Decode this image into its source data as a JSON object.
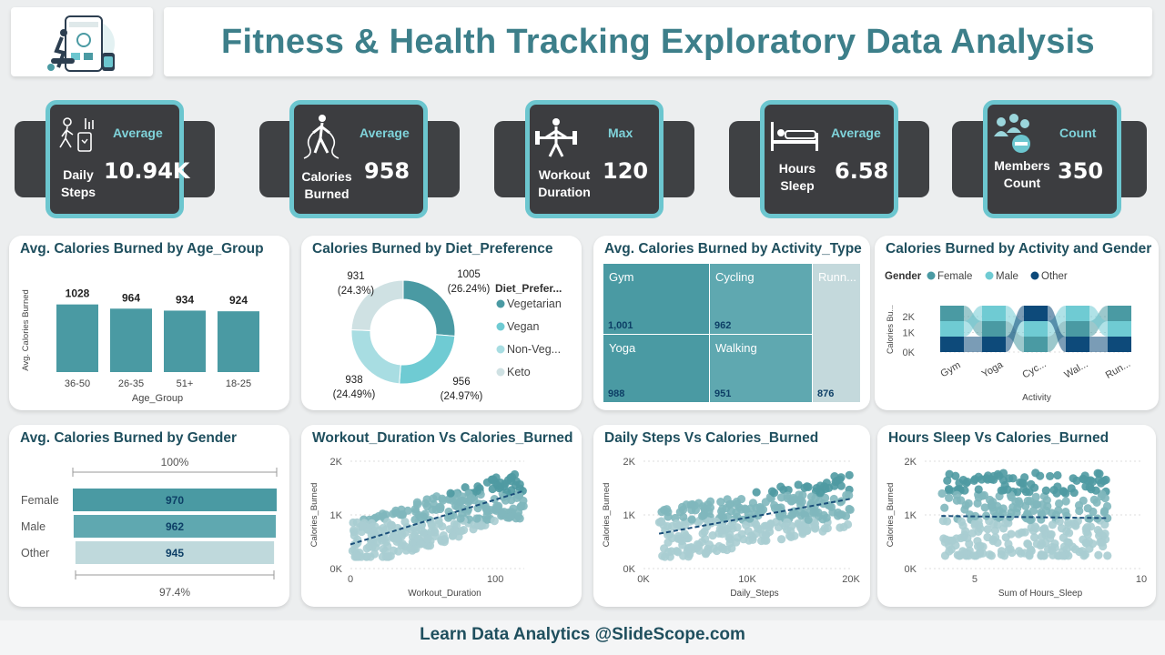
{
  "header": {
    "title": "Fitness & Health Tracking Exploratory Data Analysis",
    "accent": "#3d7f8a"
  },
  "kpis": [
    {
      "stat": "Average",
      "label1": "Daily",
      "label2": "Steps",
      "value": "10.94K",
      "icon": "walking-icon"
    },
    {
      "stat": "Average",
      "label1": "Calories",
      "label2": "Burned",
      "value": "958",
      "icon": "battle-rope-icon"
    },
    {
      "stat": "Max",
      "label1": "Workout",
      "label2": "Duration",
      "value": "120",
      "icon": "weightlifting-icon"
    },
    {
      "stat": "Average",
      "label1": "Hours",
      "label2": "Sleep",
      "value": "6.58",
      "icon": "bed-icon"
    },
    {
      "stat": "Count",
      "label1": "Members",
      "label2": "Count",
      "value": "350",
      "icon": "members-icon"
    }
  ],
  "panels": {
    "age": {
      "title": "Avg. Calories Burned by Age_Group"
    },
    "diet": {
      "title": "Calories Burned by Diet_Preference"
    },
    "activity": {
      "title": "Avg. Calories Burned by Activity_Type"
    },
    "act_gender": {
      "title": "Calories Burned by Activity and Gender"
    },
    "gender": {
      "title": "Avg. Calories Burned by Gender"
    },
    "workout": {
      "title": "Workout_Duration Vs Calories_Burned"
    },
    "steps": {
      "title": "Daily Steps Vs Calories_Burned"
    },
    "sleep": {
      "title": "Hours Sleep Vs Calories_Burned"
    }
  },
  "footer": {
    "text": "Learn Data Analytics @SlideScope.com"
  },
  "colors": {
    "teal_dark": "#4a9aa3",
    "teal_mid": "#6cc6cf",
    "teal_light": "#bfd9dc",
    "navy": "#0d4a7a",
    "dark_teal": "#1f4f5e"
  },
  "chart_data": [
    {
      "id": "age_group",
      "type": "bar",
      "title": "Avg. Calories Burned by Age_Group",
      "xlabel": "Age_Group",
      "ylabel": "Avg. Calories Burned",
      "categories": [
        "36-50",
        "26-35",
        "51+",
        "18-25"
      ],
      "values": [
        1028,
        964,
        934,
        924
      ],
      "labels": [
        "1028",
        "964",
        "934",
        "924"
      ],
      "ylim": [
        0,
        1100
      ]
    },
    {
      "id": "diet",
      "type": "pie",
      "title": "Calories Burned by Diet_Preference",
      "legend_title": "Diet_Prefer...",
      "legend_position": "right",
      "slices": [
        {
          "name": "Vegetarian",
          "value": 1005,
          "pct": "(26.24%)",
          "label": "1005",
          "color": "#4a9aa3"
        },
        {
          "name": "Vegan",
          "value": 956,
          "pct": "(24.97%)",
          "label": "956",
          "color": "#6fcbd3"
        },
        {
          "name": "Non-Veg...",
          "value": 938,
          "pct": "(24.49%)",
          "label": "938",
          "color": "#a8dde2"
        },
        {
          "name": "Keto",
          "value": 931,
          "pct": "(24.3%)",
          "label": "931",
          "color": "#cfe1e3"
        }
      ]
    },
    {
      "id": "activity_type",
      "type": "treemap",
      "title": "Avg. Calories Burned by Activity_Type",
      "items": [
        {
          "name": "Gym",
          "value": 1001,
          "label": "1,001"
        },
        {
          "name": "Cycling",
          "value": 962,
          "label": "962"
        },
        {
          "name": "Runn...",
          "value": 0,
          "label": ""
        },
        {
          "name": "Yoga",
          "value": 988,
          "label": "988"
        },
        {
          "name": "Walking",
          "value": 951,
          "label": "951"
        },
        {
          "name": "",
          "value": 876,
          "label": "876"
        }
      ]
    },
    {
      "id": "activity_gender",
      "type": "area",
      "title": "Calories Burned by Activity and Gender",
      "legend_title": "Gender",
      "legend_position": "top-left",
      "xlabel": "Activity",
      "ylabel": "Calories Bu...",
      "categories": [
        "Gym",
        "Yoga",
        "Cyc...",
        "Wal...",
        "Run..."
      ],
      "yticks": [
        "0K",
        "1K",
        "2K"
      ],
      "series": [
        {
          "name": "Female",
          "color": "#4a9aa3"
        },
        {
          "name": "Male",
          "color": "#6fcbd3"
        },
        {
          "name": "Other",
          "color": "#0d4a7a"
        }
      ]
    },
    {
      "id": "gender",
      "type": "bar",
      "title": "Avg. Calories Burned by Gender",
      "categories": [
        "Female",
        "Male",
        "Other"
      ],
      "values": [
        970,
        962,
        945
      ],
      "labels": [
        "970",
        "962",
        "945"
      ],
      "top_label": "100%",
      "bottom_label": "97.4%"
    },
    {
      "id": "workout_scatter",
      "type": "scatter",
      "title": "Workout_Duration Vs Calories_Burned",
      "xlabel": "Workout_Duration",
      "ylabel": "Calories_Burned",
      "xticks": [
        "0",
        "100"
      ],
      "yticks": [
        "0K",
        "1K",
        "2K"
      ],
      "xlim": [
        0,
        120
      ],
      "ylim": [
        0,
        2000
      ],
      "trend": [
        [
          0,
          450
        ],
        [
          120,
          1450
        ]
      ]
    },
    {
      "id": "steps_scatter",
      "type": "scatter",
      "title": "Daily Steps Vs Calories_Burned",
      "xlabel": "Daily_Steps",
      "ylabel": "Calories_Burned",
      "xticks": [
        "0K",
        "10K",
        "20K"
      ],
      "yticks": [
        "0K",
        "1K",
        "2K"
      ],
      "xlim": [
        0,
        20000
      ],
      "ylim": [
        0,
        2000
      ],
      "trend": [
        [
          1500,
          650
        ],
        [
          20000,
          1300
        ]
      ]
    },
    {
      "id": "sleep_scatter",
      "type": "scatter",
      "title": "Hours Sleep Vs Calories_Burned",
      "xlabel": "Sum of Hours_Sleep",
      "ylabel": "Calories_Burned",
      "xticks": [
        "5",
        "10"
      ],
      "yticks": [
        "0K",
        "1K",
        "2K"
      ],
      "xlim": [
        3.5,
        10
      ],
      "ylim": [
        0,
        2000
      ],
      "trend": [
        [
          4,
          980
        ],
        [
          9,
          940
        ]
      ]
    }
  ]
}
